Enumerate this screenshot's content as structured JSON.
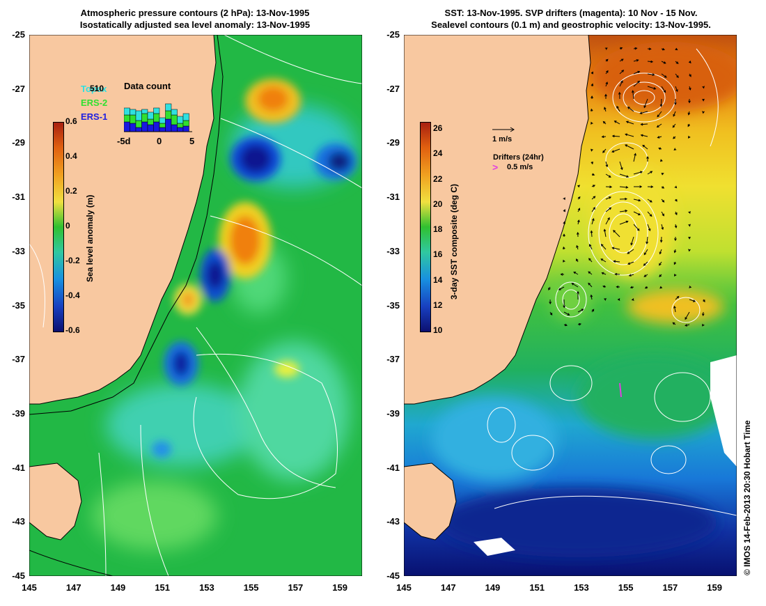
{
  "left": {
    "title_line1": "Atmospheric pressure contours (2 hPa): 13-Nov-1995",
    "title_line2": "Isostatically adjusted sea level anomaly: 13-Nov-1995",
    "colorbar_label": "Sea level anomaly (m)",
    "colorbar_ticks": [
      "0.6",
      "0.4",
      "0.2",
      "0",
      "-0.2",
      "-0.4",
      "-0.6"
    ],
    "legend": {
      "topex": "Topex",
      "ers2": "ERS-2",
      "ers1": "ERS-1",
      "count_value": "510"
    },
    "data_count": {
      "title": "Data count",
      "ticks": [
        "-5d",
        "0",
        "5"
      ]
    }
  },
  "right": {
    "title_line1": "SST: 13-Nov-1995. SVP drifters (magenta): 10 Nov - 15 Nov.",
    "title_line2": "Sealevel contours (0.1 m) and geostrophic velocity: 13-Nov-1995.",
    "colorbar_label": "3-day SST composite (deg C)",
    "colorbar_ticks": [
      "26",
      "24",
      "22",
      "20",
      "18",
      "16",
      "14",
      "12",
      "10"
    ],
    "velocity_scale": "1 m/s",
    "drifters_label": "Drifters (24hr)",
    "drifters_speed": "0.5 m/s"
  },
  "axes": {
    "lat_ticks": [
      "-25",
      "-27",
      "-29",
      "-31",
      "-33",
      "-35",
      "-37",
      "-39",
      "-41",
      "-43",
      "-45"
    ],
    "lon_ticks": [
      "145",
      "147",
      "149",
      "151",
      "153",
      "155",
      "157",
      "159"
    ]
  },
  "credit": "© IMOS 14-Feb-2013 20:30 Hobart Time",
  "colors": {
    "land": "#f8c8a0",
    "ocean_mid": "#28c050",
    "high": "#f08010",
    "low": "#101890",
    "magenta": "#e040e0"
  }
}
